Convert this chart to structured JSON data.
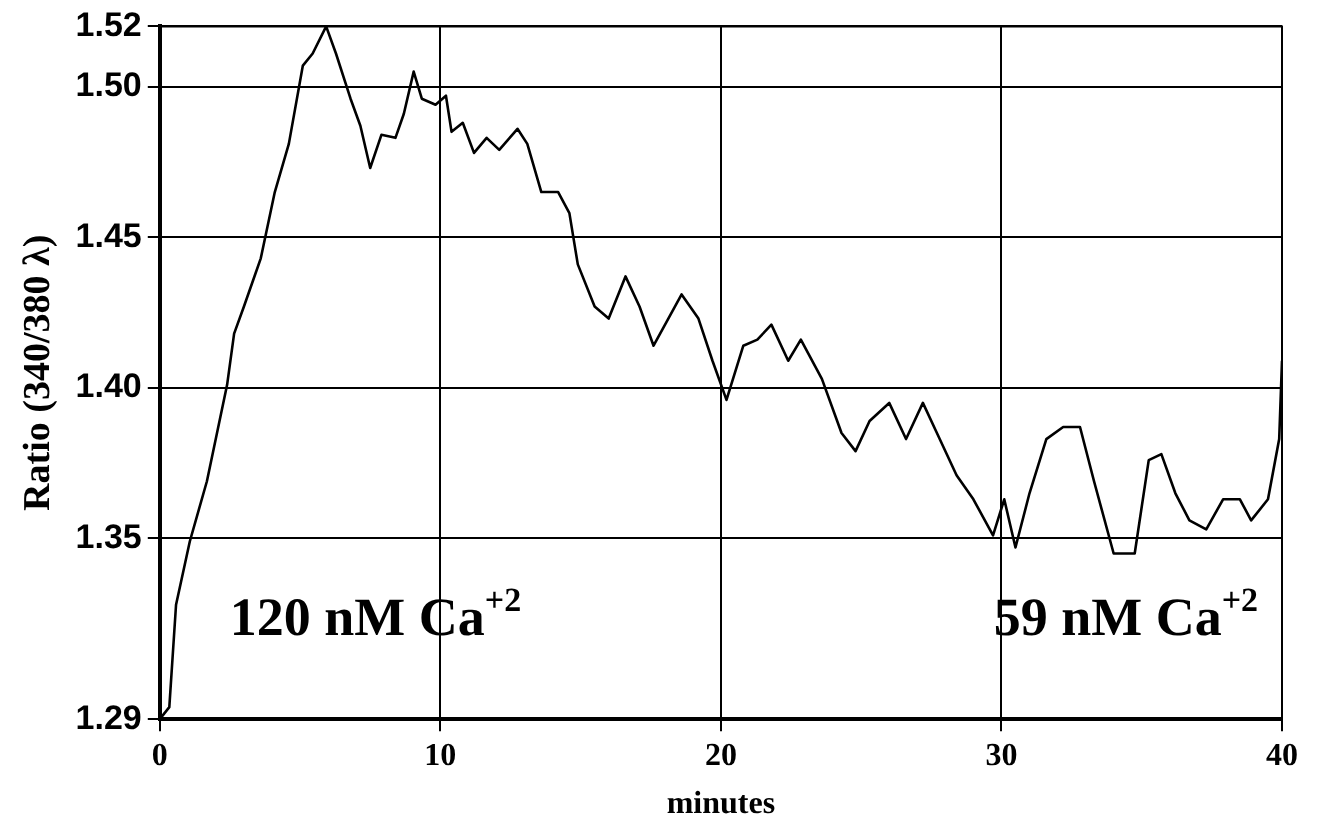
{
  "chart_data": {
    "type": "line",
    "xlabel": "minutes",
    "ylabel": "Ratio (340/380 λ)",
    "x": [
      0,
      0.34,
      0.58,
      1.07,
      1.68,
      2.4,
      2.65,
      3.0,
      3.6,
      4.1,
      4.6,
      5.1,
      5.45,
      5.93,
      6.28,
      6.8,
      7.15,
      7.5,
      7.9,
      8.4,
      8.7,
      9.05,
      9.34,
      9.83,
      10.2,
      10.4,
      10.8,
      11.2,
      11.65,
      12.1,
      12.75,
      13.1,
      13.6,
      14.2,
      14.6,
      14.9,
      15.5,
      16.0,
      16.6,
      17.1,
      17.6,
      18.6,
      19.2,
      19.7,
      20.2,
      20.8,
      21.3,
      21.8,
      22.4,
      22.85,
      23.6,
      24.3,
      24.8,
      25.3,
      26.0,
      26.6,
      27.2,
      27.7,
      28.4,
      29.0,
      29.7,
      30.1,
      30.5,
      31.0,
      31.6,
      32.2,
      32.8,
      33.3,
      34.0,
      34.75,
      35.25,
      35.7,
      36.2,
      36.7,
      37.3,
      37.9,
      38.5,
      38.9,
      39.5,
      39.9,
      40.0
    ],
    "series": [
      {
        "color": "#000000",
        "values": [
          1.29,
          1.294,
          1.328,
          1.349,
          1.369,
          1.401,
          1.418,
          1.427,
          1.443,
          1.465,
          1.481,
          1.507,
          1.511,
          1.52,
          1.511,
          1.496,
          1.487,
          1.473,
          1.484,
          1.483,
          1.491,
          1.505,
          1.496,
          1.494,
          1.497,
          1.485,
          1.488,
          1.478,
          1.483,
          1.479,
          1.486,
          1.481,
          1.465,
          1.465,
          1.458,
          1.441,
          1.427,
          1.423,
          1.437,
          1.427,
          1.414,
          1.431,
          1.423,
          1.409,
          1.396,
          1.414,
          1.416,
          1.421,
          1.409,
          1.416,
          1.403,
          1.385,
          1.379,
          1.389,
          1.395,
          1.383,
          1.395,
          1.385,
          1.371,
          1.363,
          1.351,
          1.363,
          1.347,
          1.365,
          1.383,
          1.387,
          1.387,
          1.369,
          1.345,
          1.345,
          1.376,
          1.378,
          1.365,
          1.356,
          1.353,
          1.363,
          1.363,
          1.356,
          1.363,
          1.383,
          1.409
        ]
      }
    ],
    "xlim": [
      0,
      40
    ],
    "xticks": [
      0,
      10,
      20,
      30,
      40
    ],
    "ylim": [
      1.29,
      1.52
    ],
    "yticks": [
      1.29,
      1.35,
      {
        "value": 1.4,
        "label": "1.40"
      },
      1.45,
      {
        "value": 1.5,
        "label": "1.50"
      },
      1.52
    ],
    "grid": true,
    "legend": false,
    "marker": "none",
    "line_style": "solid",
    "annotations": [
      "120 nM Ca$^{+2}$",
      "59 nM Ca$^{+2}$"
    ]
  }
}
